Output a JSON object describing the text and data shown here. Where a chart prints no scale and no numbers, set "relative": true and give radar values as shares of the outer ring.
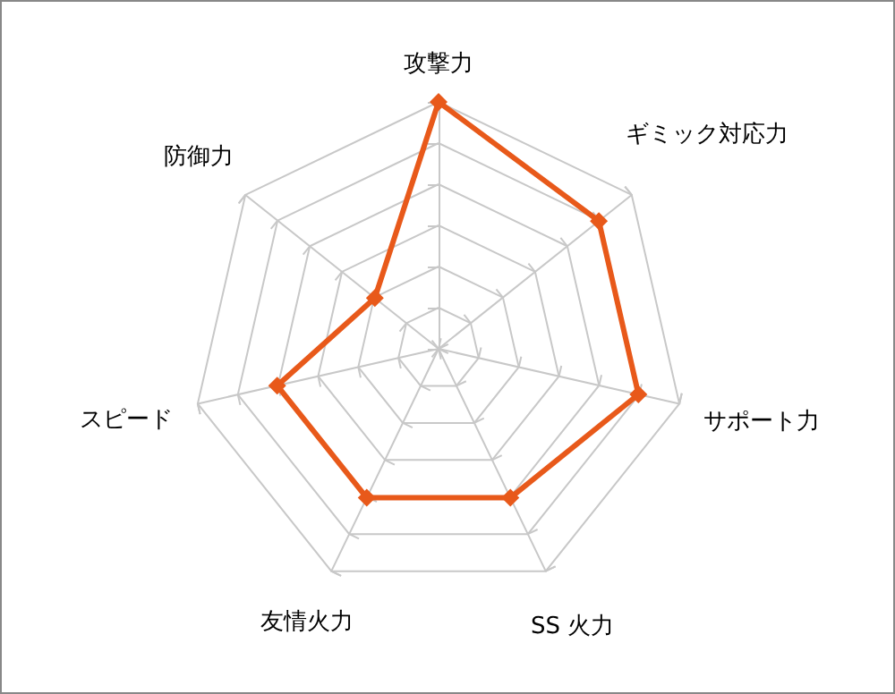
{
  "chart_data": {
    "type": "radar",
    "relative": true,
    "categories": [
      "攻撃力",
      "ギミック対応力",
      "サポート力",
      "SS 火力",
      "友情火力",
      "スピード",
      "防御力"
    ],
    "series": [
      {
        "color": "#e8591a",
        "values": [
          1,
          0.83,
          0.83,
          0.67,
          0.67,
          0.67,
          0.33
        ]
      }
    ],
    "marker": "diamond",
    "grid": true
  }
}
